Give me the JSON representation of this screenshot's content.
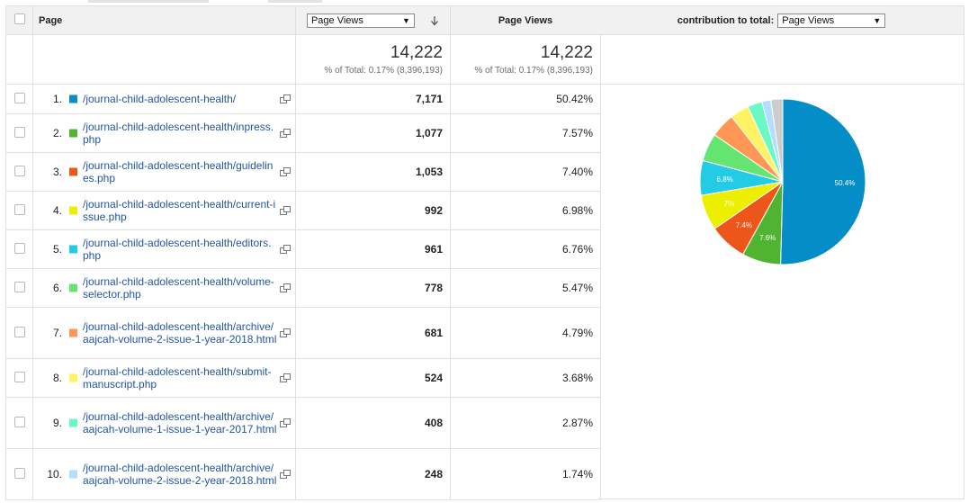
{
  "header": {
    "page_label": "Page",
    "metric_select": "Page Views",
    "sort_icon": "arrow-down-icon",
    "metric_col_label": "Page Views",
    "contribution_label": "contribution to total:",
    "contribution_select": "Page Views"
  },
  "totals": {
    "col1_value": "14,222",
    "col1_sub": "% of Total: 0.17% (8,396,193)",
    "col2_value": "14,222",
    "col2_sub": "% of Total: 0.17% (8,396,193)"
  },
  "rows": [
    {
      "idx": "1.",
      "page": "/journal-child-adolescent-health/",
      "views": "7,171",
      "pct": "50.42%",
      "color": "#058dc7"
    },
    {
      "idx": "2.",
      "page": "/journal-child-adolescent-health/inpress.php",
      "views": "1,077",
      "pct": "7.57%",
      "color": "#50b432"
    },
    {
      "idx": "3.",
      "page": "/journal-child-adolescent-health/guidelines.php",
      "views": "1,053",
      "pct": "7.40%",
      "color": "#ed561b"
    },
    {
      "idx": "4.",
      "page": "/journal-child-adolescent-health/current-issue.php",
      "views": "992",
      "pct": "6.98%",
      "color": "#edef00"
    },
    {
      "idx": "5.",
      "page": "/journal-child-adolescent-health/editors.php",
      "views": "961",
      "pct": "6.76%",
      "color": "#24cbe5"
    },
    {
      "idx": "6.",
      "page": "/journal-child-adolescent-health/volume-selector.php",
      "views": "778",
      "pct": "5.47%",
      "color": "#64e572"
    },
    {
      "idx": "7.",
      "page": "/journal-child-adolescent-health/archive/aajcah-volume-2-issue-1-year-2018.html",
      "views": "681",
      "pct": "4.79%",
      "color": "#ff9655"
    },
    {
      "idx": "8.",
      "page": "/journal-child-adolescent-health/submit-manuscript.php",
      "views": "524",
      "pct": "3.68%",
      "color": "#fff263"
    },
    {
      "idx": "9.",
      "page": "/journal-child-adolescent-health/archive/aajcah-volume-1-issue-1-year-2017.html",
      "views": "408",
      "pct": "2.87%",
      "color": "#6af9c4"
    },
    {
      "idx": "10.",
      "page": "/journal-child-adolescent-health/archive/aajcah-volume-2-issue-2-year-2018.html",
      "views": "248",
      "pct": "1.74%",
      "color": "#b2deff"
    }
  ],
  "chart_data": {
    "type": "pie",
    "categories": [
      "1",
      "2",
      "3",
      "4",
      "5",
      "6",
      "7",
      "8",
      "9",
      "10",
      "other"
    ],
    "values": [
      50.42,
      7.57,
      7.4,
      6.98,
      6.76,
      5.47,
      4.79,
      3.68,
      2.87,
      1.74,
      2.32
    ],
    "colors": [
      "#058dc7",
      "#50b432",
      "#ed561b",
      "#edef00",
      "#24cbe5",
      "#64e572",
      "#ff9655",
      "#fff263",
      "#6af9c4",
      "#b2deff",
      "#cccccc"
    ],
    "slice_labels": [
      "50.4%",
      "7.6%",
      "7.4%",
      "7%",
      "6.8%",
      "",
      "",
      "",
      "",
      "",
      ""
    ]
  }
}
